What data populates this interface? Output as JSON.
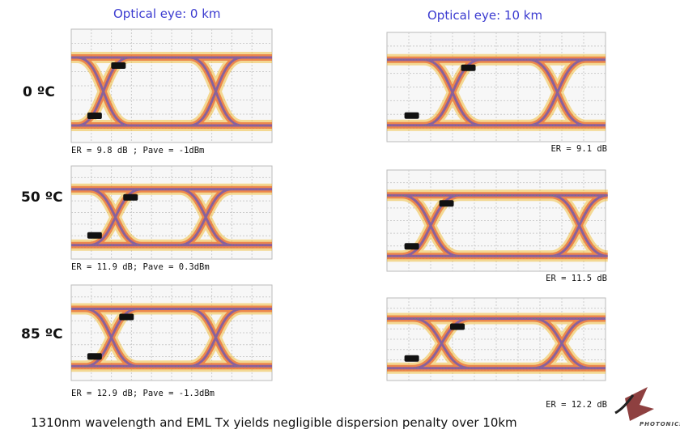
{
  "columns": [
    {
      "title": "Optical eye: 0 km",
      "panels": [
        {
          "caption": "ER = 9.8 dB ; Pave = -1dBm"
        },
        {
          "caption": "ER = 11.9 dB; Pave = 0.3dBm"
        },
        {
          "caption": "ER = 12.9 dB; Pave = -1.3dBm"
        }
      ]
    },
    {
      "title": "Optical eye: 10 km",
      "panels": [
        {
          "caption": "ER = 9.1 dB"
        },
        {
          "caption": "ER = 11.5 dB"
        },
        {
          "caption": "ER = 12.2 dB"
        }
      ]
    }
  ],
  "rows": [
    {
      "label": "0 ºC"
    },
    {
      "label": "50 ºC"
    },
    {
      "label": "85 ºC"
    }
  ],
  "footer": "1310nm wavelength and EML Tx yields negligible dispersion penalty over 10km",
  "logo": "PHOTONICS"
}
